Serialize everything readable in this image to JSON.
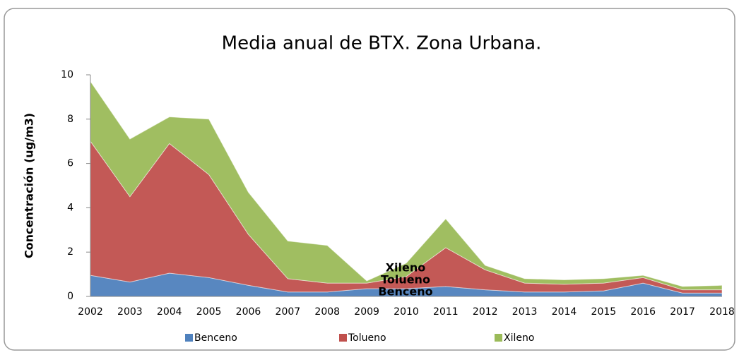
{
  "chart_data": {
    "type": "stacked_area",
    "title": "Media anual de BTX. Zona Urbana.",
    "y_label": "Concentración (ug/m3)",
    "categories": [
      "2002",
      "2003",
      "2004",
      "2005",
      "2006",
      "2007",
      "2008",
      "2009",
      "2010",
      "2011",
      "2012",
      "2013",
      "2014",
      "2015",
      "2016",
      "2017",
      "2018"
    ],
    "series": [
      {
        "name": "Benceno",
        "color": "#4f81bd",
        "values": [
          0.95,
          0.65,
          1.05,
          0.85,
          0.5,
          0.2,
          0.2,
          0.35,
          0.35,
          0.45,
          0.3,
          0.2,
          0.2,
          0.25,
          0.6,
          0.15,
          0.15
        ]
      },
      {
        "name": "Tolueno",
        "color": "#c0504d",
        "values": [
          6.05,
          3.85,
          5.85,
          4.65,
          2.3,
          0.6,
          0.4,
          0.25,
          0.55,
          1.75,
          0.9,
          0.4,
          0.35,
          0.35,
          0.25,
          0.15,
          0.15
        ]
      },
      {
        "name": "Xileno",
        "color": "#9bbb59",
        "values": [
          2.7,
          2.6,
          1.2,
          2.5,
          1.9,
          1.7,
          1.7,
          0.1,
          0.6,
          1.3,
          0.2,
          0.2,
          0.2,
          0.2,
          0.1,
          0.15,
          0.2
        ]
      }
    ],
    "annotations": [
      "Xileno",
      "Tolueno",
      "Benceno"
    ],
    "ylim": [
      0,
      10
    ],
    "yticks": [
      0,
      2,
      4,
      6,
      8,
      10
    ],
    "legend": "bottom"
  }
}
